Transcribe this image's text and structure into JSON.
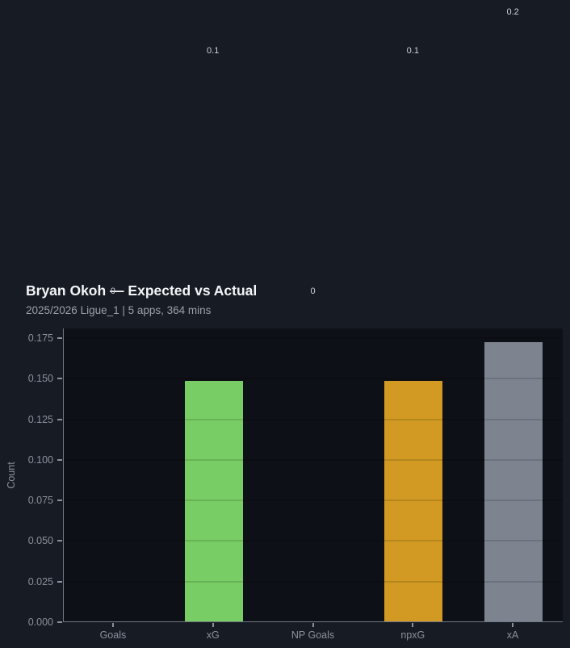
{
  "page": {
    "background": "#171b23"
  },
  "header": {
    "title": "Bryan Okoh — Expected vs Actual",
    "subtitle": "2025/2026 Ligue_1 | 5 apps, 364 mins"
  },
  "chart_data": {
    "type": "bar",
    "title": "Bryan Okoh — Expected vs Actual",
    "subtitle": "2025/2026 Ligue_1 | 5 apps, 364 mins",
    "xlabel": "",
    "ylabel": "Count",
    "categories": [
      "Goals",
      "xG",
      "NP Goals",
      "npxG",
      "xA"
    ],
    "values": [
      0,
      0.148,
      0,
      0.148,
      0.172
    ],
    "bar_labels": [
      "0",
      "0.1",
      "0",
      "0.1",
      "0.2"
    ],
    "bar_colors": [
      "#78ce64",
      "#78ce64",
      "#d29a23",
      "#d29a23",
      "#7d8490"
    ],
    "ylim": [
      0,
      0.181
    ],
    "yticks": [
      0,
      0.025,
      0.05,
      0.075,
      0.1,
      0.125,
      0.15,
      0.175
    ],
    "ytick_labels": [
      "0.000",
      "0.025",
      "0.050",
      "0.075",
      "0.100",
      "0.125",
      "0.150",
      "0.175"
    ],
    "grid": "horizontal",
    "legend": "none",
    "colors": {
      "page_bg": "#171b23",
      "plot_bg": "#0d1016",
      "spine": "#717885",
      "grid": "rgba(0,0,0,0.13)",
      "title": "#f3f5f7",
      "subtitle": "#99a0ab",
      "tick_label": "#8b919c",
      "annotation": "#ced3da"
    }
  }
}
